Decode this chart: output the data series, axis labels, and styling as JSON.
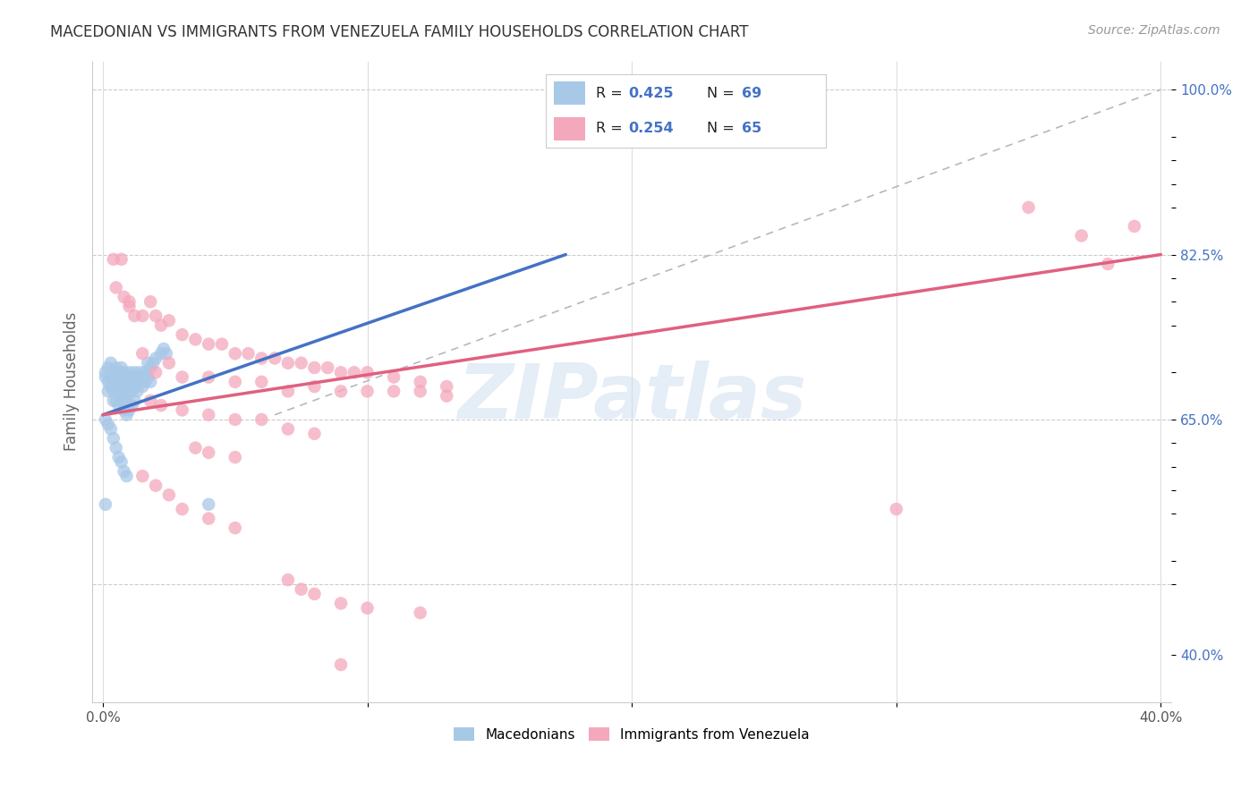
{
  "title": "MACEDONIAN VS IMMIGRANTS FROM VENEZUELA FAMILY HOUSEHOLDS CORRELATION CHART",
  "source": "Source: ZipAtlas.com",
  "ylabel": "Family Households",
  "blue_color": "#a8c8e8",
  "pink_color": "#f4a8bc",
  "line_blue": "#4472c4",
  "line_pink": "#e06080",
  "line_gray": "#b8b8b8",
  "watermark": "ZIPatlas",
  "xlim": [
    -0.004,
    0.404
  ],
  "ylim": [
    0.35,
    1.03
  ],
  "ytick_positions": [
    0.4,
    0.475,
    0.5,
    0.55,
    0.575,
    0.6,
    0.625,
    0.65,
    0.7,
    0.75,
    0.775,
    0.8,
    0.825,
    0.875,
    0.9,
    0.925,
    0.95,
    1.0
  ],
  "ytick_labels": [
    "40.0%",
    "",
    "",
    "",
    "",
    "",
    "",
    "65.0%",
    "",
    "",
    "",
    "",
    "82.5%",
    "",
    "",
    "",
    "",
    "100.0%"
  ],
  "xtick_positions": [
    0.0,
    0.1,
    0.2,
    0.3,
    0.4
  ],
  "xtick_labels": [
    "0.0%",
    "",
    "",
    "",
    "40.0%"
  ],
  "grid_yticks": [
    0.475,
    0.65,
    0.825,
    1.0
  ],
  "blue_trendline": [
    [
      0.0,
      0.655
    ],
    [
      0.175,
      0.825
    ]
  ],
  "pink_trendline": [
    [
      0.0,
      0.655
    ],
    [
      0.4,
      0.825
    ]
  ],
  "gray_trendline": [
    [
      0.065,
      0.655
    ],
    [
      0.4,
      1.0
    ]
  ],
  "blue_scatter": [
    [
      0.001,
      0.7
    ],
    [
      0.001,
      0.695
    ],
    [
      0.002,
      0.705
    ],
    [
      0.002,
      0.69
    ],
    [
      0.002,
      0.68
    ],
    [
      0.003,
      0.71
    ],
    [
      0.003,
      0.695
    ],
    [
      0.003,
      0.685
    ],
    [
      0.004,
      0.7
    ],
    [
      0.004,
      0.69
    ],
    [
      0.004,
      0.68
    ],
    [
      0.004,
      0.67
    ],
    [
      0.005,
      0.705
    ],
    [
      0.005,
      0.695
    ],
    [
      0.005,
      0.685
    ],
    [
      0.005,
      0.67
    ],
    [
      0.006,
      0.7
    ],
    [
      0.006,
      0.69
    ],
    [
      0.006,
      0.68
    ],
    [
      0.006,
      0.665
    ],
    [
      0.007,
      0.705
    ],
    [
      0.007,
      0.695
    ],
    [
      0.007,
      0.685
    ],
    [
      0.007,
      0.67
    ],
    [
      0.008,
      0.7
    ],
    [
      0.008,
      0.69
    ],
    [
      0.008,
      0.675
    ],
    [
      0.008,
      0.66
    ],
    [
      0.009,
      0.695
    ],
    [
      0.009,
      0.685
    ],
    [
      0.009,
      0.67
    ],
    [
      0.009,
      0.655
    ],
    [
      0.01,
      0.7
    ],
    [
      0.01,
      0.69
    ],
    [
      0.01,
      0.678
    ],
    [
      0.01,
      0.66
    ],
    [
      0.011,
      0.695
    ],
    [
      0.011,
      0.68
    ],
    [
      0.011,
      0.665
    ],
    [
      0.012,
      0.7
    ],
    [
      0.012,
      0.685
    ],
    [
      0.012,
      0.67
    ],
    [
      0.013,
      0.695
    ],
    [
      0.013,
      0.68
    ],
    [
      0.014,
      0.7
    ],
    [
      0.014,
      0.69
    ],
    [
      0.015,
      0.695
    ],
    [
      0.015,
      0.685
    ],
    [
      0.016,
      0.7
    ],
    [
      0.016,
      0.69
    ],
    [
      0.017,
      0.71
    ],
    [
      0.017,
      0.695
    ],
    [
      0.018,
      0.705
    ],
    [
      0.018,
      0.69
    ],
    [
      0.019,
      0.71
    ],
    [
      0.02,
      0.715
    ],
    [
      0.022,
      0.72
    ],
    [
      0.023,
      0.725
    ],
    [
      0.024,
      0.72
    ],
    [
      0.001,
      0.65
    ],
    [
      0.002,
      0.645
    ],
    [
      0.003,
      0.64
    ],
    [
      0.004,
      0.63
    ],
    [
      0.005,
      0.62
    ],
    [
      0.006,
      0.61
    ],
    [
      0.007,
      0.605
    ],
    [
      0.008,
      0.595
    ],
    [
      0.009,
      0.59
    ],
    [
      0.04,
      0.56
    ],
    [
      0.001,
      0.56
    ]
  ],
  "pink_scatter": [
    [
      0.004,
      0.82
    ],
    [
      0.007,
      0.82
    ],
    [
      0.008,
      0.78
    ],
    [
      0.01,
      0.775
    ],
    [
      0.012,
      0.76
    ],
    [
      0.015,
      0.76
    ],
    [
      0.018,
      0.775
    ],
    [
      0.02,
      0.76
    ],
    [
      0.022,
      0.75
    ],
    [
      0.025,
      0.755
    ],
    [
      0.03,
      0.74
    ],
    [
      0.035,
      0.735
    ],
    [
      0.04,
      0.73
    ],
    [
      0.045,
      0.73
    ],
    [
      0.05,
      0.72
    ],
    [
      0.055,
      0.72
    ],
    [
      0.06,
      0.715
    ],
    [
      0.065,
      0.715
    ],
    [
      0.07,
      0.71
    ],
    [
      0.075,
      0.71
    ],
    [
      0.08,
      0.705
    ],
    [
      0.085,
      0.705
    ],
    [
      0.09,
      0.7
    ],
    [
      0.095,
      0.7
    ],
    [
      0.1,
      0.7
    ],
    [
      0.11,
      0.695
    ],
    [
      0.12,
      0.69
    ],
    [
      0.13,
      0.685
    ],
    [
      0.005,
      0.79
    ],
    [
      0.01,
      0.77
    ],
    [
      0.015,
      0.72
    ],
    [
      0.02,
      0.7
    ],
    [
      0.025,
      0.71
    ],
    [
      0.03,
      0.695
    ],
    [
      0.04,
      0.695
    ],
    [
      0.05,
      0.69
    ],
    [
      0.06,
      0.69
    ],
    [
      0.07,
      0.68
    ],
    [
      0.08,
      0.685
    ],
    [
      0.09,
      0.68
    ],
    [
      0.1,
      0.68
    ],
    [
      0.11,
      0.68
    ],
    [
      0.12,
      0.68
    ],
    [
      0.13,
      0.675
    ],
    [
      0.018,
      0.67
    ],
    [
      0.022,
      0.665
    ],
    [
      0.03,
      0.66
    ],
    [
      0.04,
      0.655
    ],
    [
      0.05,
      0.65
    ],
    [
      0.06,
      0.65
    ],
    [
      0.07,
      0.64
    ],
    [
      0.08,
      0.635
    ],
    [
      0.035,
      0.62
    ],
    [
      0.04,
      0.615
    ],
    [
      0.05,
      0.61
    ],
    [
      0.015,
      0.59
    ],
    [
      0.02,
      0.58
    ],
    [
      0.025,
      0.57
    ],
    [
      0.03,
      0.555
    ],
    [
      0.04,
      0.545
    ],
    [
      0.05,
      0.535
    ],
    [
      0.07,
      0.48
    ],
    [
      0.075,
      0.47
    ],
    [
      0.08,
      0.465
    ],
    [
      0.09,
      0.455
    ],
    [
      0.1,
      0.45
    ],
    [
      0.12,
      0.445
    ],
    [
      0.35,
      0.875
    ],
    [
      0.37,
      0.845
    ],
    [
      0.39,
      0.855
    ],
    [
      0.38,
      0.815
    ],
    [
      0.3,
      0.555
    ],
    [
      0.09,
      0.39
    ]
  ]
}
